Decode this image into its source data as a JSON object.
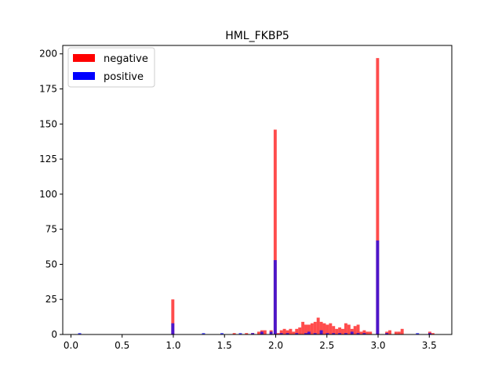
{
  "chart_data": {
    "type": "bar",
    "subtype": "overlaid-histogram",
    "title": "HML_FKBP5",
    "xlabel": "",
    "ylabel": "",
    "xlim": [
      -0.08,
      3.72
    ],
    "ylim": [
      0,
      206
    ],
    "xticks": [
      0.0,
      0.5,
      1.0,
      1.5,
      2.0,
      2.5,
      3.0,
      3.5
    ],
    "xtick_labels": [
      "0.0",
      "0.5",
      "1.0",
      "1.5",
      "2.0",
      "2.5",
      "3.0",
      "3.5"
    ],
    "yticks": [
      0,
      25,
      50,
      75,
      100,
      125,
      150,
      175,
      200
    ],
    "ytick_labels": [
      "0",
      "25",
      "50",
      "75",
      "100",
      "125",
      "150",
      "175",
      "200"
    ],
    "bin_width": 0.03,
    "grid": false,
    "legend": {
      "position": "top-left"
    },
    "colors": {
      "negative": "#ff0000",
      "positive": "#0000ff"
    },
    "series": [
      {
        "name": "negative",
        "color": "#ff0000",
        "alpha": 0.7,
        "bins": [
          [
            0.98,
            25
          ],
          [
            1.98,
            146
          ],
          [
            2.01,
            1
          ],
          [
            1.58,
            1
          ],
          [
            1.7,
            1
          ],
          [
            1.76,
            1
          ],
          [
            1.82,
            2
          ],
          [
            1.85,
            3
          ],
          [
            1.88,
            3
          ],
          [
            1.94,
            3
          ],
          [
            2.04,
            3
          ],
          [
            2.07,
            4
          ],
          [
            2.1,
            3
          ],
          [
            2.13,
            4
          ],
          [
            2.16,
            2
          ],
          [
            2.19,
            4
          ],
          [
            2.22,
            5
          ],
          [
            2.25,
            9
          ],
          [
            2.28,
            7
          ],
          [
            2.31,
            7
          ],
          [
            2.34,
            8
          ],
          [
            2.37,
            9
          ],
          [
            2.4,
            12
          ],
          [
            2.43,
            9
          ],
          [
            2.46,
            8
          ],
          [
            2.49,
            7
          ],
          [
            2.52,
            8
          ],
          [
            2.55,
            6
          ],
          [
            2.58,
            4
          ],
          [
            2.61,
            5
          ],
          [
            2.64,
            4
          ],
          [
            2.67,
            8
          ],
          [
            2.7,
            7
          ],
          [
            2.73,
            4
          ],
          [
            2.76,
            6
          ],
          [
            2.79,
            7
          ],
          [
            2.82,
            2
          ],
          [
            2.85,
            3
          ],
          [
            2.88,
            2
          ],
          [
            2.91,
            2
          ],
          [
            2.98,
            197
          ],
          [
            3.07,
            2
          ],
          [
            3.1,
            3
          ],
          [
            3.16,
            2
          ],
          [
            3.19,
            2
          ],
          [
            3.22,
            4
          ],
          [
            3.49,
            2
          ],
          [
            3.52,
            1
          ]
        ]
      },
      {
        "name": "positive",
        "color": "#0000ff",
        "alpha": 0.7,
        "bins": [
          [
            0.07,
            1
          ],
          [
            0.98,
            8
          ],
          [
            1.28,
            1
          ],
          [
            1.46,
            1
          ],
          [
            1.64,
            1
          ],
          [
            1.76,
            1
          ],
          [
            1.85,
            2
          ],
          [
            1.94,
            2
          ],
          [
            1.98,
            53
          ],
          [
            2.04,
            1
          ],
          [
            2.1,
            1
          ],
          [
            2.19,
            1
          ],
          [
            2.28,
            1
          ],
          [
            2.31,
            2
          ],
          [
            2.37,
            1
          ],
          [
            2.43,
            3
          ],
          [
            2.49,
            1
          ],
          [
            2.55,
            1
          ],
          [
            2.61,
            1
          ],
          [
            2.67,
            1
          ],
          [
            2.73,
            2
          ],
          [
            2.79,
            1
          ],
          [
            2.85,
            1
          ],
          [
            2.98,
            67
          ],
          [
            3.07,
            1
          ],
          [
            3.37,
            1
          ],
          [
            3.49,
            1
          ]
        ]
      }
    ]
  }
}
